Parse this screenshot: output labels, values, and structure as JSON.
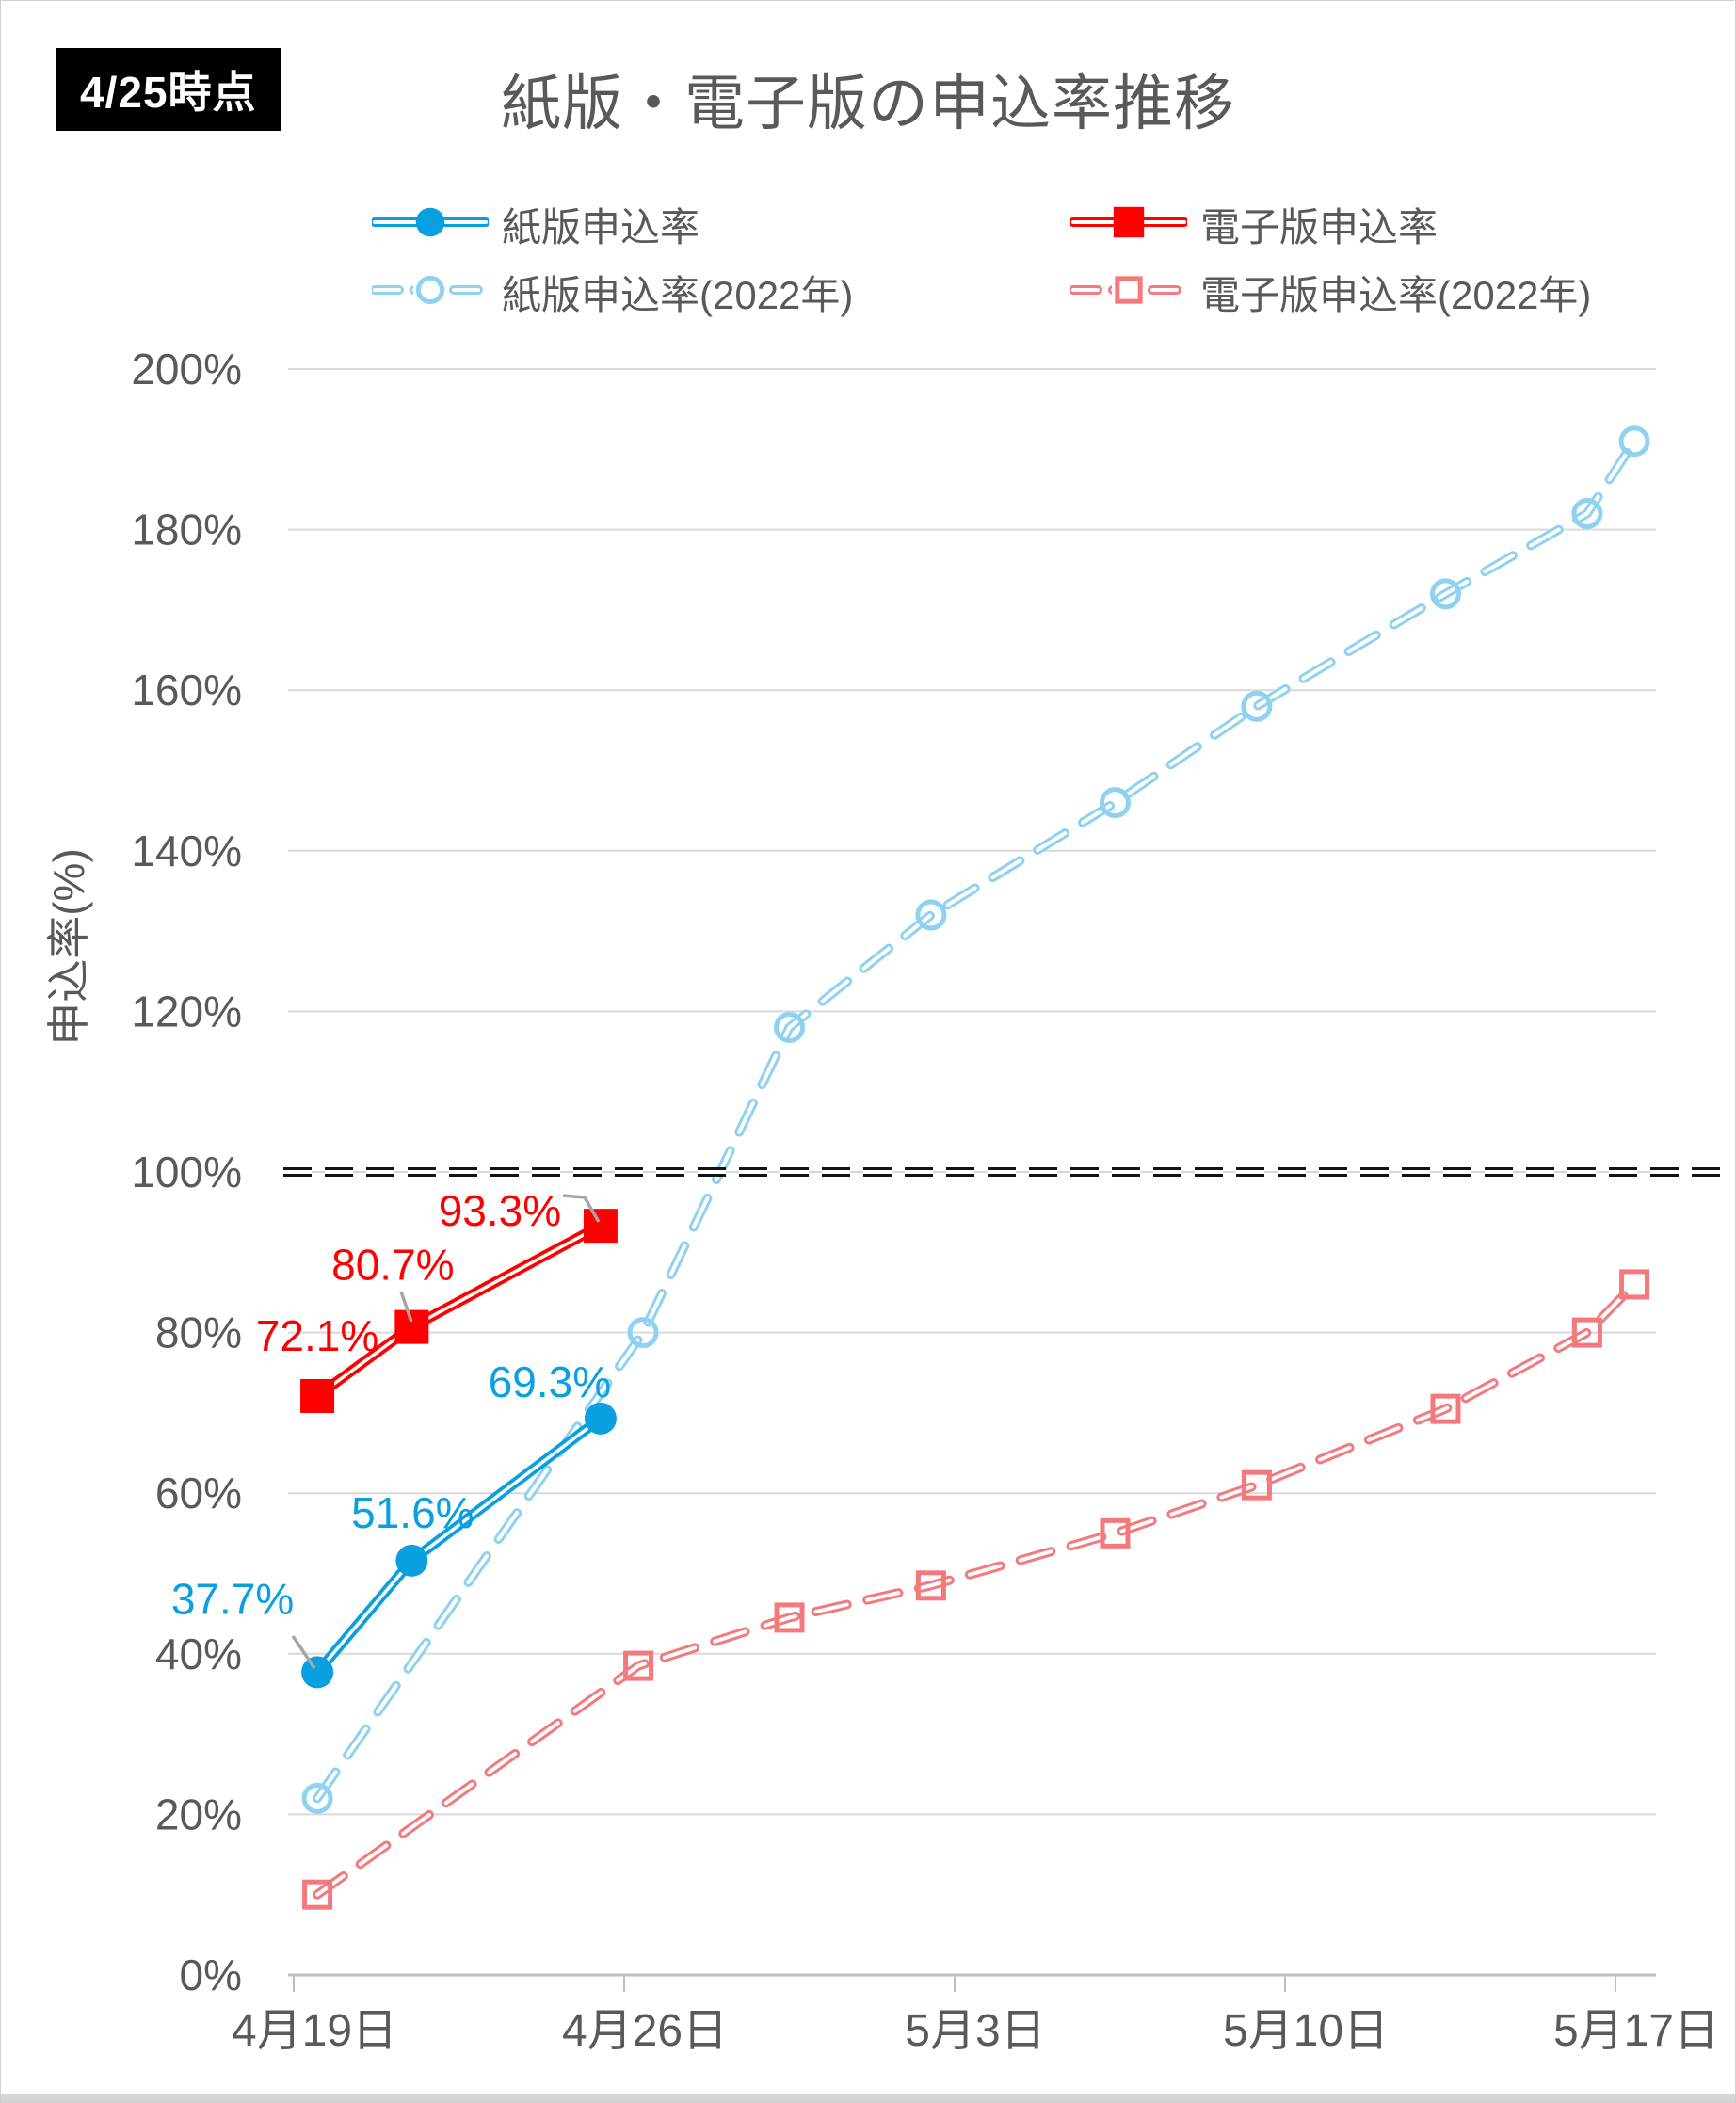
{
  "badge": "4/25時点",
  "title": "紙版・電子版の申込率推移",
  "y_axis_title": "申込率(%)",
  "colors": {
    "blue": "#0aa0e0",
    "red": "#ff0000",
    "light_blue": "#8ed1f1",
    "pink": "#f4797d",
    "grid": "#d9d9d9",
    "axis": "#bfbfbf",
    "text": "#595959",
    "reference": "#141414",
    "leader": "#a6a6a6"
  },
  "legend": [
    {
      "id": "paper_2023",
      "label": "紙版申込率"
    },
    {
      "id": "ebook_2023",
      "label": "電子版申込率"
    },
    {
      "id": "paper_2022",
      "label": "紙版申込率(2022年)"
    },
    {
      "id": "ebook_2022",
      "label": "電子版申込率(2022年)"
    }
  ],
  "chart_data": {
    "type": "line",
    "title": "紙版・電子版の申込率推移",
    "ylabel": "申込率(%)",
    "ylim": [
      0,
      200
    ],
    "grid": "horizontal",
    "legend_position": "top",
    "x_ticks": [
      {
        "label": "4月19日",
        "day": 0
      },
      {
        "label": "4月26日",
        "day": 7
      },
      {
        "label": "5月3日",
        "day": 14
      },
      {
        "label": "5月10日",
        "day": 21
      },
      {
        "label": "5月17日",
        "day": 28
      }
    ],
    "y_ticks": [
      {
        "label": "0%",
        "value": 0
      },
      {
        "label": "20%",
        "value": 20
      },
      {
        "label": "40%",
        "value": 40
      },
      {
        "label": "60%",
        "value": 60
      },
      {
        "label": "80%",
        "value": 80
      },
      {
        "label": "100%",
        "value": 100
      },
      {
        "label": "120%",
        "value": 120
      },
      {
        "label": "140%",
        "value": 140
      },
      {
        "label": "160%",
        "value": 160
      },
      {
        "label": "180%",
        "value": 180
      },
      {
        "label": "200%",
        "value": 200
      }
    ],
    "reference_line": {
      "value": 100,
      "style": "double-dashed-black"
    },
    "series": [
      {
        "id": "paper_2022",
        "name": "紙版申込率(2022年)",
        "color": "#8ed1f1",
        "style": "dashed",
        "marker": "circle-open",
        "days": [
          0.5,
          7.4,
          10.5,
          13.5,
          17.4,
          20.4,
          24.4,
          27.4,
          28.4
        ],
        "values": [
          22,
          80,
          118,
          132,
          146,
          158,
          172,
          182,
          191
        ]
      },
      {
        "id": "ebook_2022",
        "name": "電子版申込率(2022年)",
        "color": "#f4797d",
        "style": "dashed",
        "marker": "square-open",
        "days": [
          0.5,
          7.3,
          10.5,
          13.5,
          17.4,
          20.4,
          24.4,
          27.4,
          28.4
        ],
        "values": [
          10,
          38.5,
          44.5,
          48.5,
          55,
          61,
          70.5,
          80,
          86
        ]
      },
      {
        "id": "paper_2023",
        "name": "紙版申込率",
        "color": "#0aa0e0",
        "style": "solid",
        "marker": "circle-filled",
        "days": [
          0.5,
          2.5,
          6.5
        ],
        "values": [
          37.7,
          51.6,
          69.3
        ],
        "data_labels": [
          "37.7%",
          "51.6%",
          "69.3%"
        ]
      },
      {
        "id": "ebook_2023",
        "name": "電子版申込率",
        "color": "#ff0000",
        "style": "solid",
        "marker": "square-filled",
        "days": [
          0.5,
          2.5,
          6.5
        ],
        "values": [
          72.1,
          80.7,
          93.3
        ],
        "data_labels": [
          "72.1%",
          "80.7%",
          "93.3%"
        ]
      }
    ]
  }
}
